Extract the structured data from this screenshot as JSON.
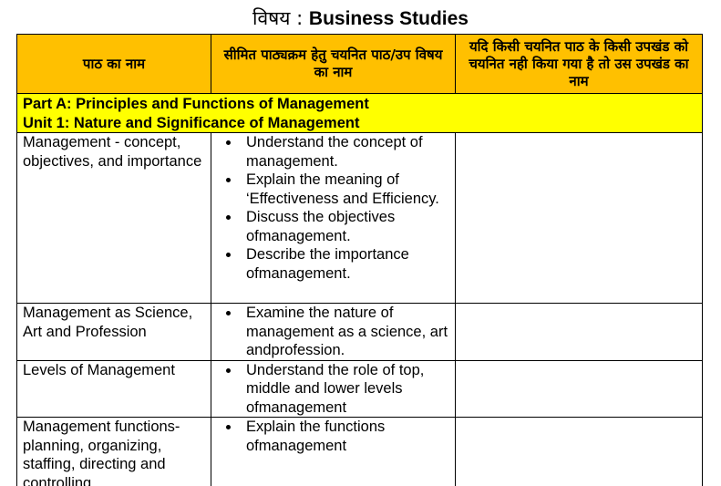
{
  "title": {
    "label": "विषय :",
    "subject": "Business Studies"
  },
  "headers": [
    "पाठ का नाम",
    "सीमित पाठ्यक्रम हेतु चयनित पाठ/उप विषय का नाम",
    "यदि किसी चयनित पाठ के किसी उपखंड को चयनित नही किया गया है तो उस उपखंड का नाम"
  ],
  "part": {
    "line1": "Part A: Principles and Functions of Management",
    "line2": "Unit 1: Nature and Significance of Management"
  },
  "colors": {
    "header_bg": "#FFC000",
    "part_bg": "#FFFF00"
  },
  "rows": [
    {
      "lesson": "Management - concept, objectives, and importance",
      "topics": [
        "Understand the concept of management.",
        "Explain the meaning of ‘Effectiveness and Efficiency.",
        "Discuss the objectives ofmanagement.",
        "Describe the importance ofmanagement."
      ],
      "excluded": ""
    },
    {
      "lesson": "Management as Science, Art and Profession",
      "topics": [
        "Examine the nature of management as a science, art andprofession."
      ],
      "excluded": ""
    },
    {
      "lesson": "Levels of Management",
      "topics": [
        "Understand the role of top, middle and lower levels ofmanagement"
      ],
      "excluded": ""
    },
    {
      "lesson": "Management functions-planning, organizing, staffing, directing and controlling",
      "topics": [
        "Explain the functions ofmanagement"
      ],
      "excluded": ""
    }
  ]
}
